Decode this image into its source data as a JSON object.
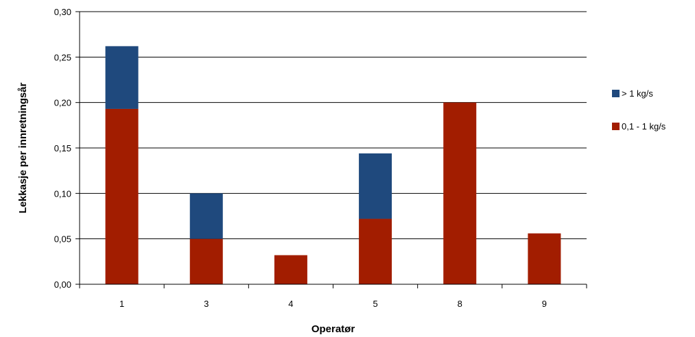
{
  "chart_data": {
    "type": "bar",
    "stacked": true,
    "categories": [
      "1",
      "3",
      "4",
      "5",
      "8",
      "9"
    ],
    "series": [
      {
        "name": "0,1 - 1 kg/s",
        "color": "#A21D00",
        "values": [
          0.193,
          0.05,
          0.032,
          0.072,
          0.2,
          0.056
        ]
      },
      {
        "name": "> 1 kg/s",
        "color": "#1F497D",
        "values": [
          0.069,
          0.05,
          0.0,
          0.072,
          0.0,
          0.0
        ]
      }
    ],
    "xlabel": "Operatør",
    "ylabel": "Lekkasje per innretningsår",
    "ylim": [
      0,
      0.3
    ],
    "yticks": [
      0.0,
      0.05,
      0.1,
      0.15,
      0.2,
      0.25,
      0.3
    ],
    "ytick_labels": [
      "0,00",
      "0,05",
      "0,10",
      "0,15",
      "0,20",
      "0,25",
      "0,30"
    ],
    "grid": true,
    "legend_position": "right",
    "legend_order": [
      "> 1 kg/s",
      "0,1 - 1 kg/s"
    ]
  }
}
